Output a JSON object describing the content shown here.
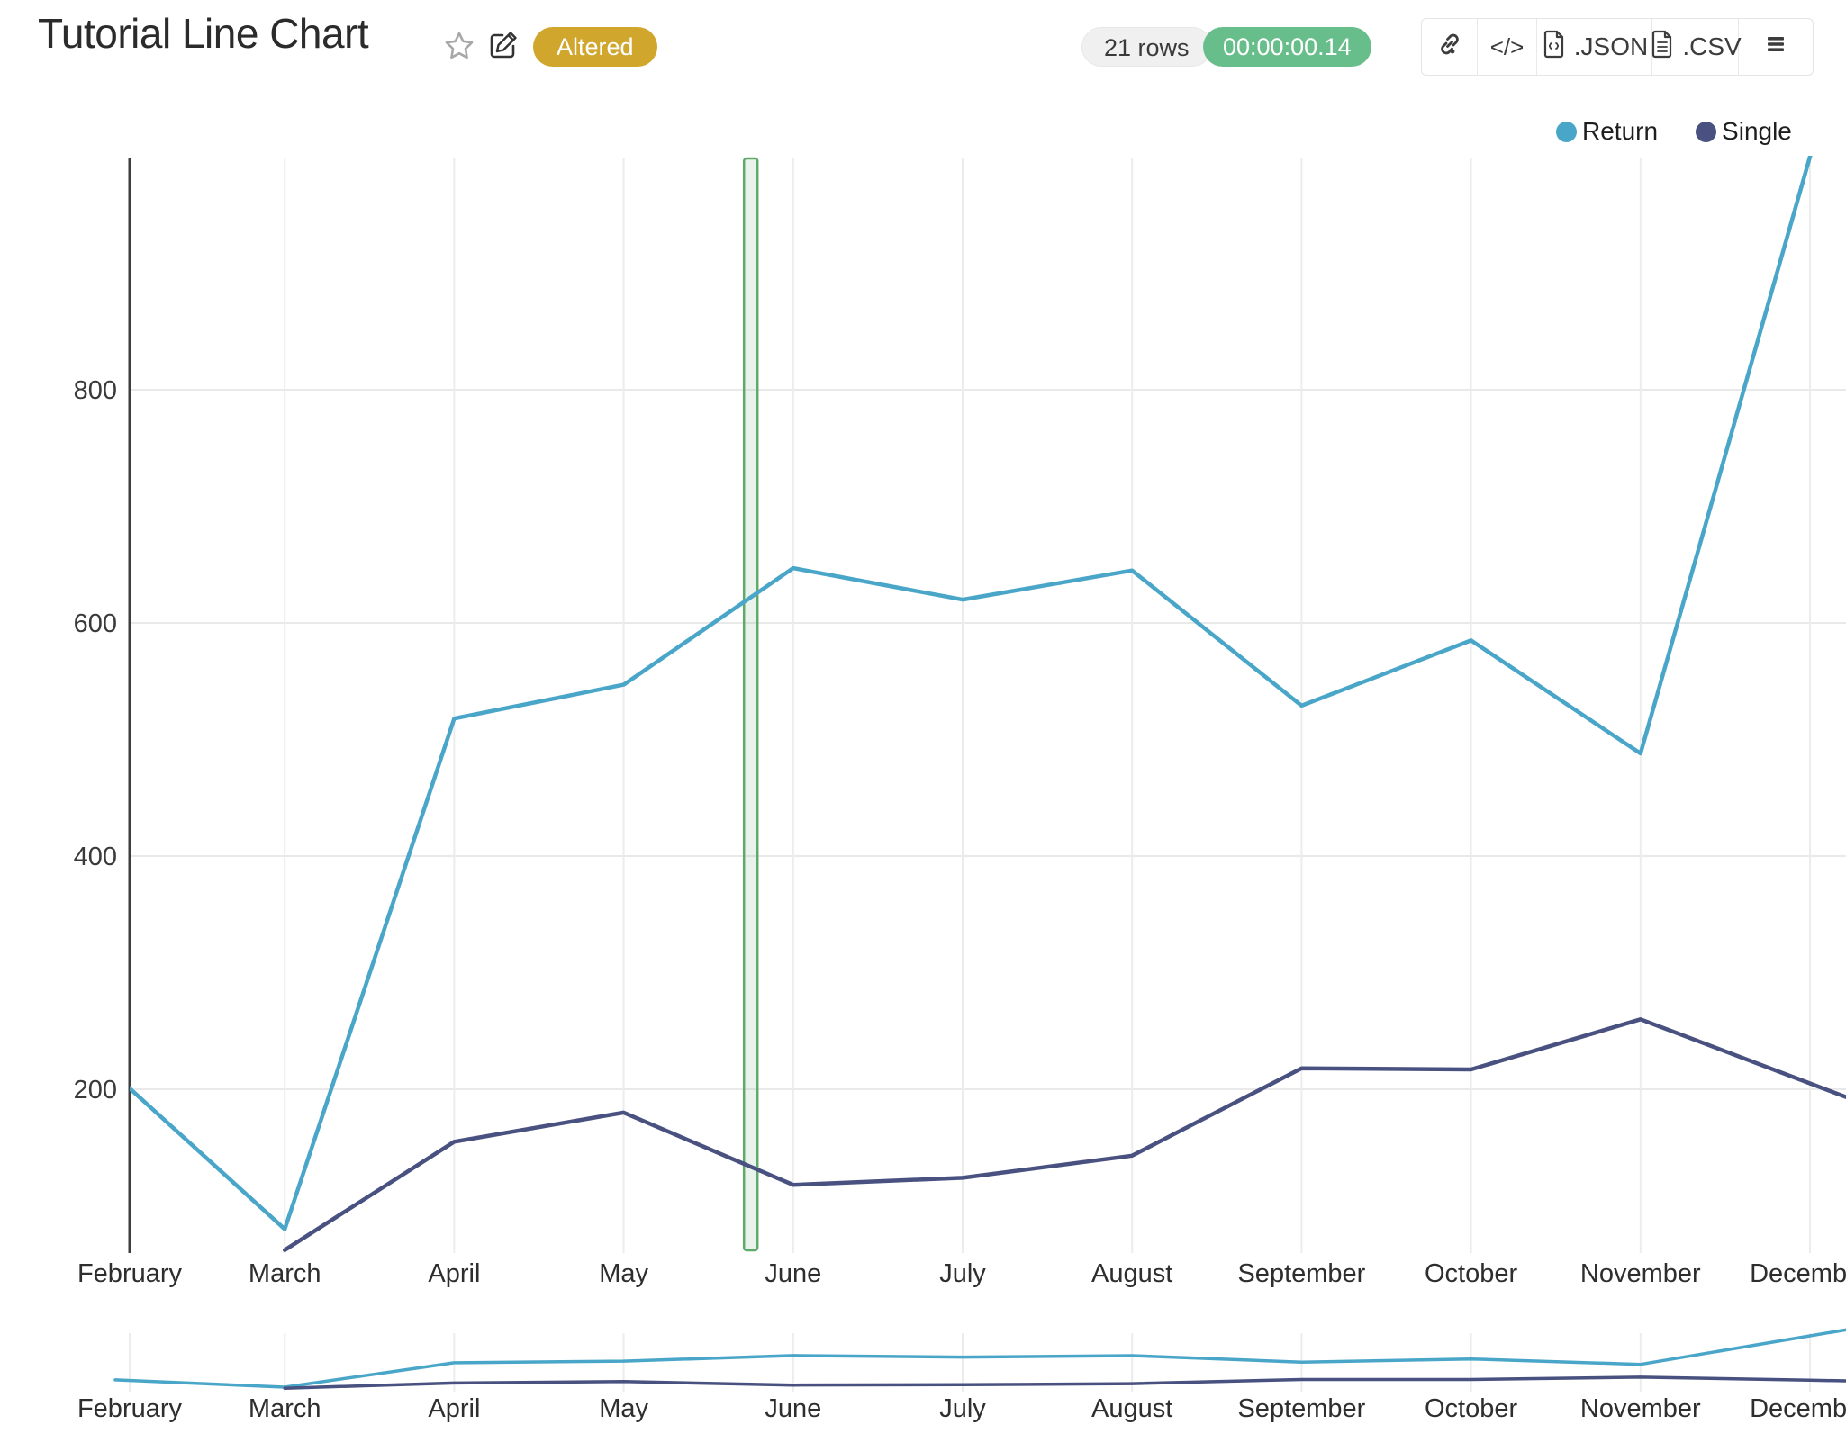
{
  "header": {
    "title": "Tutorial Line Chart",
    "status_badge": "Altered",
    "rows_count": "21 rows",
    "execution_time": "00:00:00.14",
    "toolbar": {
      "link_icon": "link-icon",
      "embed_label": "</>",
      "json_label": ".JSON",
      "csv_label": ".CSV",
      "menu_icon": "hamburger-menu-icon"
    },
    "colors": {
      "altered_badge": "#D0A62D",
      "timer_badge": "#68BE8B",
      "rows_badge": "#f0f0f1"
    }
  },
  "legend": {
    "items": [
      {
        "label": "Return",
        "color": "#4AA6C8"
      },
      {
        "label": "Single",
        "color": "#48517F"
      }
    ]
  },
  "chart_data": {
    "type": "line",
    "title": "",
    "categories": [
      "February",
      "March",
      "April",
      "May",
      "June",
      "July",
      "August",
      "September",
      "October",
      "November",
      "December"
    ],
    "series": [
      {
        "name": "Return",
        "color": "#4AA6C8",
        "values": [
          212,
          80,
          518,
          547,
          647,
          620,
          645,
          529,
          585,
          488,
          1000
        ]
      },
      {
        "name": "Single",
        "color": "#48517F",
        "values": [
          null,
          62,
          155,
          180,
          118,
          124,
          143,
          218,
          217,
          260,
          205
        ]
      }
    ],
    "xlabel": "",
    "ylabel": "",
    "yticks": [
      200,
      400,
      600,
      800
    ],
    "ylim": [
      59,
      1000
    ],
    "grid": true,
    "legend_position": "top-right",
    "range_slider": true,
    "highlight_band": {
      "between": [
        "May",
        "June"
      ],
      "fraction": 0.75,
      "color": "#5FA96B"
    }
  }
}
